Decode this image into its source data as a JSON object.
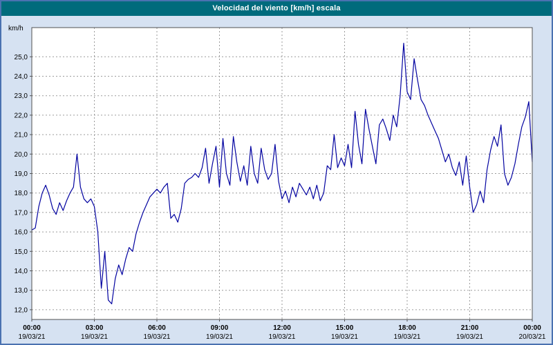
{
  "title": "Velocidad del viento [km/h] escala",
  "colors": {
    "titlebar": "#006b7c",
    "background": "#d6e2f2",
    "frame": "#4a72b0",
    "plot_bg": "#ffffff",
    "grid": "#9a9a9a",
    "line": "#0202a0",
    "axis_text": "#000000"
  },
  "chart_data": {
    "type": "line",
    "title": "Velocidad del viento [km/h] escala",
    "xlabel": "",
    "ylabel": "km/h",
    "ylim": [
      11.5,
      26.5
    ],
    "xlim_hours": [
      0,
      24
    ],
    "grid": "dashed",
    "legend": "none",
    "sample_interval_minutes": 10,
    "y_ticks": [
      {
        "value": 12,
        "label": "12,0"
      },
      {
        "value": 13,
        "label": "13,0"
      },
      {
        "value": 14,
        "label": "14,0"
      },
      {
        "value": 15,
        "label": "15,0"
      },
      {
        "value": 16,
        "label": "16,0"
      },
      {
        "value": 17,
        "label": "17,0"
      },
      {
        "value": 18,
        "label": "18,0"
      },
      {
        "value": 19,
        "label": "19,0"
      },
      {
        "value": 20,
        "label": "20,0"
      },
      {
        "value": 21,
        "label": "21,0"
      },
      {
        "value": 22,
        "label": "22,0"
      },
      {
        "value": 23,
        "label": "23,0"
      },
      {
        "value": 24,
        "label": "24,0"
      },
      {
        "value": 25,
        "label": "25,0"
      }
    ],
    "x_ticks": [
      {
        "hour": 0,
        "time": "00:00",
        "date": "19/03/21"
      },
      {
        "hour": 3,
        "time": "03:00",
        "date": "19/03/21"
      },
      {
        "hour": 6,
        "time": "06:00",
        "date": "19/03/21"
      },
      {
        "hour": 9,
        "time": "09:00",
        "date": "19/03/21"
      },
      {
        "hour": 12,
        "time": "12:00",
        "date": "19/03/21"
      },
      {
        "hour": 15,
        "time": "15:00",
        "date": "19/03/21"
      },
      {
        "hour": 18,
        "time": "18:00",
        "date": "19/03/21"
      },
      {
        "hour": 21,
        "time": "21:00",
        "date": "19/03/21"
      },
      {
        "hour": 24,
        "time": "00:00",
        "date": "20/03/21"
      }
    ],
    "values": [
      16.1,
      16.2,
      17.3,
      18.0,
      18.4,
      17.9,
      17.2,
      16.9,
      17.5,
      17.1,
      17.6,
      18.0,
      18.3,
      20.0,
      18.3,
      17.7,
      17.5,
      17.7,
      17.3,
      16.0,
      13.1,
      15.0,
      12.5,
      12.3,
      13.6,
      14.3,
      13.8,
      14.6,
      15.2,
      15.0,
      15.9,
      16.5,
      17.0,
      17.4,
      17.8,
      18.0,
      18.2,
      18.0,
      18.3,
      18.5,
      16.7,
      16.9,
      16.5,
      17.2,
      18.5,
      18.7,
      18.8,
      19.0,
      18.8,
      19.3,
      20.3,
      18.5,
      19.5,
      20.4,
      18.3,
      20.8,
      19.0,
      18.4,
      20.9,
      19.6,
      18.6,
      19.4,
      18.4,
      20.4,
      19.0,
      18.5,
      20.3,
      19.2,
      18.7,
      19.0,
      20.5,
      18.6,
      17.7,
      18.1,
      17.5,
      18.3,
      17.8,
      18.5,
      18.2,
      17.9,
      18.3,
      17.7,
      18.4,
      17.6,
      18.0,
      19.4,
      19.2,
      21.0,
      19.3,
      19.8,
      19.4,
      20.5,
      19.3,
      22.2,
      20.5,
      19.5,
      22.3,
      21.3,
      20.4,
      19.5,
      21.5,
      21.8,
      21.3,
      20.7,
      22.0,
      21.4,
      23.0,
      25.7,
      23.2,
      22.8,
      24.9,
      23.8,
      22.8,
      22.5,
      22.0,
      21.6,
      21.2,
      20.8,
      20.2,
      19.6,
      20.0,
      19.3,
      18.9,
      19.6,
      18.4,
      19.9,
      18.3,
      17.0,
      17.4,
      18.1,
      17.5,
      19.2,
      20.2,
      20.9,
      20.4,
      21.5,
      19.0,
      18.4,
      18.8,
      19.5,
      20.5,
      21.4,
      21.9,
      22.7,
      19.6
    ]
  }
}
